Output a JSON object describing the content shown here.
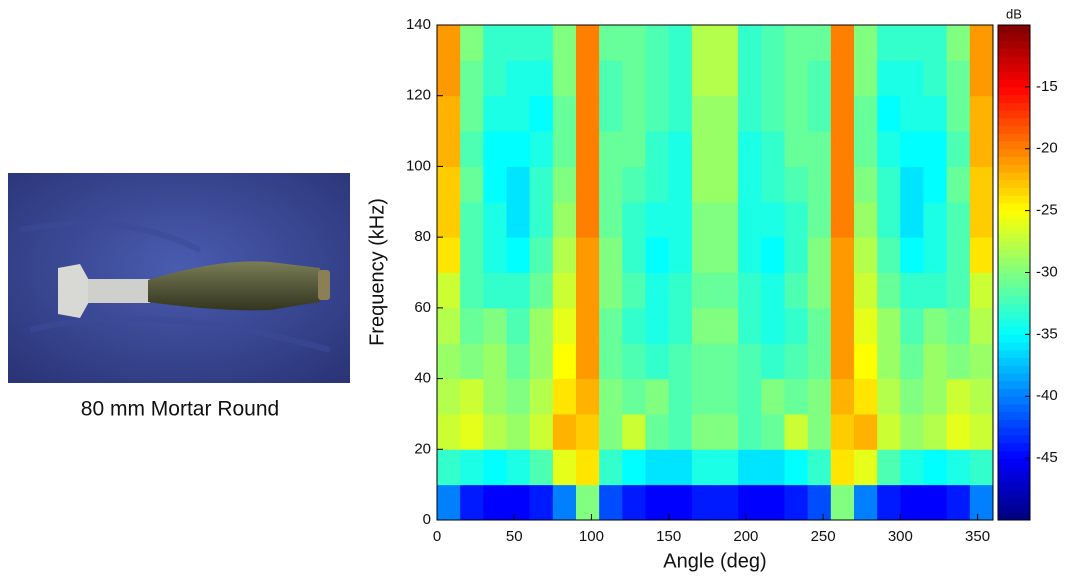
{
  "image_caption": "80 mm Mortar  Round",
  "chart_data": {
    "type": "heatmap",
    "xlabel": "Angle (deg)",
    "ylabel": "Frequency (kHz)",
    "xlim": [
      0,
      360
    ],
    "ylim": [
      0,
      140
    ],
    "xticks": [
      0,
      50,
      100,
      150,
      200,
      250,
      300,
      350
    ],
    "yticks": [
      0,
      20,
      40,
      60,
      80,
      100,
      120,
      140
    ],
    "x": [
      0,
      15,
      30,
      45,
      60,
      75,
      90,
      105,
      120,
      135,
      150,
      165,
      180,
      195,
      210,
      225,
      240,
      255,
      270,
      285,
      300,
      315,
      330,
      345,
      360
    ],
    "y": [
      0,
      10,
      20,
      30,
      40,
      50,
      60,
      70,
      80,
      90,
      100,
      110,
      120,
      130,
      140
    ],
    "values": [
      [
        -40,
        -44,
        -45,
        -45,
        -44,
        -40,
        -30,
        -42,
        -44,
        -45,
        -45,
        -44,
        -44,
        -45,
        -45,
        -44,
        -42,
        -30,
        -40,
        -44,
        -45,
        -45,
        -44,
        -40
      ],
      [
        -33,
        -34,
        -35,
        -34,
        -32,
        -26,
        -24,
        -33,
        -35,
        -36,
        -36,
        -34,
        -34,
        -36,
        -36,
        -35,
        -33,
        -24,
        -26,
        -32,
        -34,
        -35,
        -34,
        -33
      ],
      [
        -27,
        -26,
        -28,
        -29,
        -27,
        -22,
        -23,
        -30,
        -27,
        -31,
        -32,
        -30,
        -30,
        -32,
        -31,
        -27,
        -30,
        -23,
        -22,
        -27,
        -29,
        -28,
        -26,
        -27
      ],
      [
        -28,
        -27,
        -29,
        -30,
        -28,
        -24,
        -22,
        -30,
        -31,
        -30,
        -32,
        -31,
        -31,
        -32,
        -30,
        -31,
        -30,
        -22,
        -24,
        -28,
        -30,
        -29,
        -27,
        -28
      ],
      [
        -29,
        -30,
        -29,
        -31,
        -29,
        -25,
        -21,
        -31,
        -32,
        -33,
        -32,
        -31,
        -31,
        -32,
        -33,
        -32,
        -31,
        -21,
        -25,
        -29,
        -31,
        -29,
        -30,
        -29
      ],
      [
        -28,
        -31,
        -30,
        -32,
        -29,
        -26,
        -21,
        -31,
        -33,
        -34,
        -33,
        -30,
        -30,
        -33,
        -34,
        -33,
        -31,
        -21,
        -26,
        -29,
        -32,
        -30,
        -31,
        -28
      ],
      [
        -27,
        -32,
        -33,
        -33,
        -31,
        -27,
        -21,
        -30,
        -32,
        -34,
        -33,
        -31,
        -31,
        -33,
        -34,
        -32,
        -30,
        -21,
        -27,
        -31,
        -33,
        -33,
        -32,
        -27
      ],
      [
        -24,
        -32,
        -34,
        -35,
        -32,
        -28,
        -21,
        -30,
        -33,
        -35,
        -34,
        -30,
        -30,
        -34,
        -35,
        -33,
        -30,
        -21,
        -28,
        -32,
        -35,
        -34,
        -32,
        -24
      ],
      [
        -23,
        -32,
        -34,
        -36,
        -33,
        -29,
        -20,
        -31,
        -33,
        -34,
        -34,
        -30,
        -30,
        -34,
        -34,
        -33,
        -31,
        -20,
        -29,
        -33,
        -36,
        -34,
        -32,
        -23
      ],
      [
        -23,
        -31,
        -35,
        -36,
        -33,
        -30,
        -20,
        -31,
        -32,
        -33,
        -34,
        -29,
        -29,
        -34,
        -33,
        -32,
        -31,
        -20,
        -30,
        -33,
        -36,
        -35,
        -31,
        -23
      ],
      [
        -22,
        -32,
        -35,
        -35,
        -34,
        -31,
        -20,
        -31,
        -31,
        -33,
        -34,
        -29,
        -29,
        -34,
        -33,
        -31,
        -31,
        -20,
        -31,
        -34,
        -35,
        -35,
        -32,
        -22
      ],
      [
        -22,
        -31,
        -34,
        -34,
        -35,
        -31,
        -20,
        -32,
        -31,
        -32,
        -33,
        -29,
        -29,
        -33,
        -32,
        -31,
        -32,
        -20,
        -31,
        -35,
        -34,
        -34,
        -31,
        -22
      ],
      [
        -21,
        -31,
        -33,
        -34,
        -34,
        -30,
        -20,
        -32,
        -31,
        -32,
        -33,
        -28,
        -28,
        -33,
        -32,
        -31,
        -32,
        -20,
        -30,
        -34,
        -34,
        -33,
        -31,
        -21
      ],
      [
        -21,
        -30,
        -33,
        -33,
        -33,
        -30,
        -20,
        -31,
        -31,
        -32,
        -33,
        -28,
        -28,
        -33,
        -32,
        -31,
        -31,
        -20,
        -30,
        -33,
        -33,
        -33,
        -30,
        -21
      ]
    ],
    "colorbar": {
      "label": "dB",
      "lim": [
        -50,
        -10
      ],
      "ticks": [
        -15,
        -20,
        -25,
        -30,
        -35,
        -40,
        -45
      ]
    }
  }
}
